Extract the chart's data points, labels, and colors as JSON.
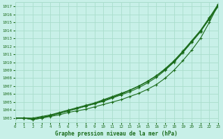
{
  "title": "Graphe pression niveau de la mer (hPa)",
  "bg_color": "#c8f0e8",
  "grid_color": "#aaddcc",
  "line_color": "#1a6b1a",
  "xlim": [
    0,
    23
  ],
  "ylim": [
    1002.5,
    1017.5
  ],
  "xticks": [
    0,
    1,
    2,
    3,
    4,
    5,
    6,
    7,
    8,
    9,
    10,
    11,
    12,
    13,
    14,
    15,
    16,
    17,
    18,
    19,
    20,
    21,
    22,
    23
  ],
  "yticks": [
    1003,
    1004,
    1005,
    1006,
    1007,
    1008,
    1009,
    1010,
    1011,
    1012,
    1013,
    1014,
    1015,
    1016,
    1017
  ],
  "series": [
    [
      1003.0,
      1003.0,
      1002.8,
      1003.0,
      1003.2,
      1003.4,
      1003.7,
      1003.9,
      1004.1,
      1004.4,
      1004.7,
      1005.0,
      1005.3,
      1005.7,
      1006.1,
      1006.6,
      1007.2,
      1008.0,
      1009.0,
      1010.2,
      1011.5,
      1013.0,
      1015.0,
      1017.2
    ],
    [
      1003.0,
      1003.0,
      1002.8,
      1003.0,
      1003.3,
      1003.6,
      1003.9,
      1004.2,
      1004.5,
      1004.8,
      1005.1,
      1005.5,
      1005.9,
      1006.3,
      1006.8,
      1007.4,
      1008.1,
      1009.0,
      1010.0,
      1011.2,
      1012.5,
      1013.8,
      1015.5,
      1017.3
    ],
    [
      1003.0,
      1003.0,
      1003.0,
      1003.2,
      1003.4,
      1003.7,
      1004.0,
      1004.3,
      1004.6,
      1004.9,
      1005.3,
      1005.7,
      1006.1,
      1006.5,
      1007.0,
      1007.6,
      1008.3,
      1009.2,
      1010.2,
      1011.4,
      1012.7,
      1014.0,
      1015.6,
      1017.2
    ],
    [
      1003.0,
      1003.0,
      1002.9,
      1003.1,
      1003.3,
      1003.6,
      1003.9,
      1004.2,
      1004.5,
      1004.8,
      1005.2,
      1005.6,
      1006.0,
      1006.5,
      1007.0,
      1007.6,
      1008.3,
      1009.1,
      1010.1,
      1011.3,
      1012.6,
      1013.9,
      1015.4,
      1017.0
    ]
  ]
}
